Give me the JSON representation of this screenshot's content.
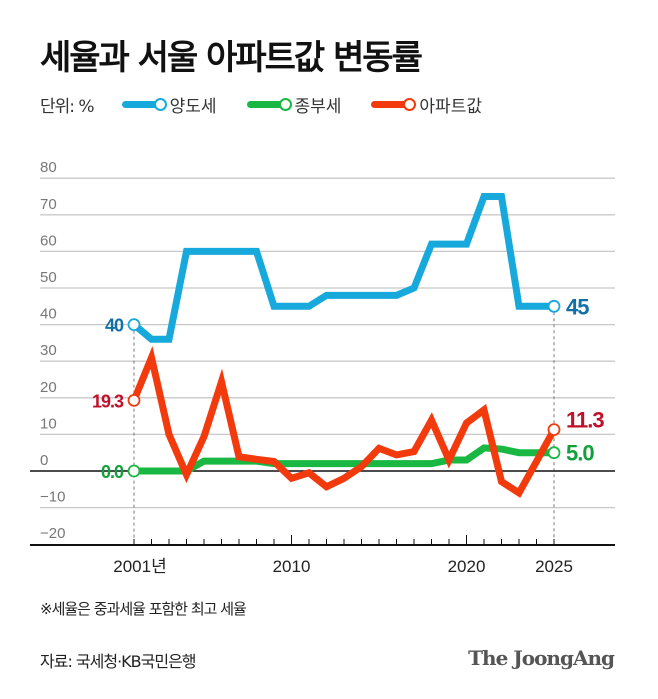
{
  "title": "세율과 서울 아파트값 변동률",
  "unit_label": "단위: %",
  "note": "※세율은 중과세율 포함한 최고 세율",
  "source": "자료: 국세청·KB국민은행",
  "logo": "The JoongAng",
  "chart_data": {
    "type": "line",
    "title": "세율과 서울 아파트값 변동률",
    "ylim": [
      -20,
      80
    ],
    "yticks": [
      "80",
      "70",
      "60",
      "50",
      "40",
      "30",
      "20",
      "10",
      "0",
      "-10",
      "-20"
    ],
    "xlim": [
      2001,
      2025
    ],
    "xtick_labels": [
      {
        "year": 2001,
        "label": "2001년"
      },
      {
        "year": 2010,
        "label": "2010"
      },
      {
        "year": 2020,
        "label": "2020"
      },
      {
        "year": 2025,
        "label": "2025"
      }
    ],
    "grid": true,
    "legend_position": "top-left",
    "x": [
      2001,
      2002,
      2003,
      2004,
      2005,
      2006,
      2007,
      2008,
      2009,
      2010,
      2011,
      2012,
      2013,
      2014,
      2015,
      2016,
      2017,
      2018,
      2019,
      2020,
      2021,
      2022,
      2023,
      2024,
      2025
    ],
    "series": [
      {
        "name": "양도세",
        "color": "#17a9dc",
        "label_color": "#1270a8",
        "start_label": "40",
        "end_label": "45",
        "values": [
          40,
          36,
          36,
          60,
          60,
          60,
          60,
          60,
          45,
          45,
          45,
          48,
          48,
          48,
          48,
          48,
          50,
          62,
          62,
          62,
          75,
          75,
          45,
          45,
          45
        ]
      },
      {
        "name": "종부세",
        "color": "#18b842",
        "label_color": "#12a03c",
        "start_label": "0.0",
        "end_label": "5.0",
        "values": [
          0,
          0,
          0,
          0,
          2.7,
          2.7,
          2.7,
          2.7,
          2,
          2,
          2,
          2,
          2,
          2,
          2,
          2,
          2,
          2,
          3,
          3,
          6.3,
          6,
          5,
          5,
          5
        ]
      },
      {
        "name": "아파트값",
        "color": "#f23a0c",
        "label_color": "#c0102a",
        "start_label": "19.3",
        "end_label": "11.3",
        "values": [
          19.3,
          31,
          10,
          -1,
          9.4,
          24.4,
          3.9,
          3.2,
          2.6,
          -2,
          -0.5,
          -4.3,
          -2,
          1.2,
          6.2,
          4.4,
          5.3,
          13.9,
          3,
          13.1,
          16.7,
          -2.9,
          -6,
          2.6,
          11.3
        ]
      }
    ]
  }
}
